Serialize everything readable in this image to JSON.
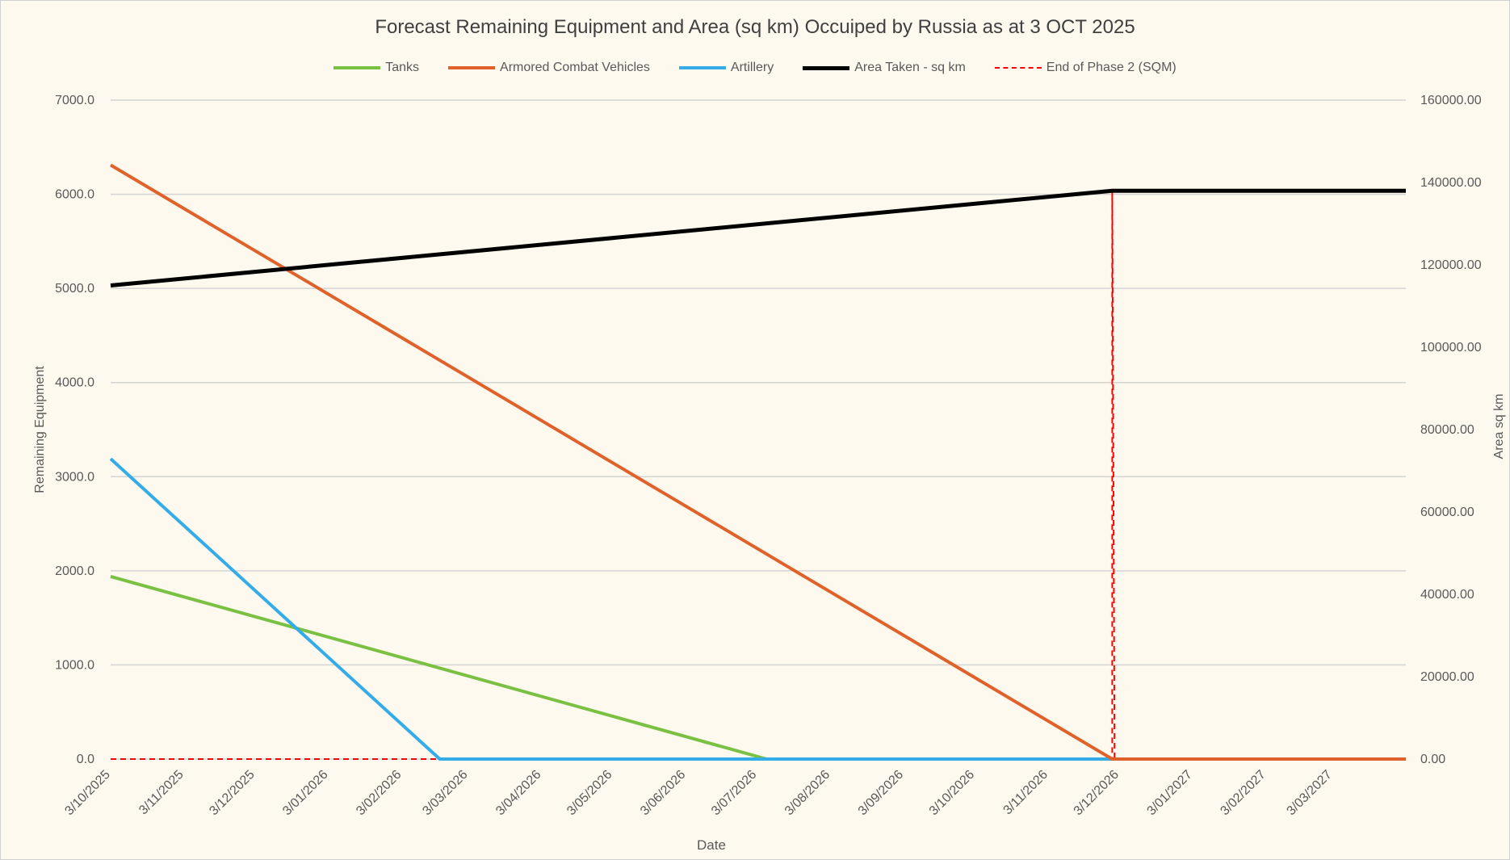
{
  "chart_data": {
    "type": "line",
    "title": "Forecast Remaining Equipment and Area (sq km) Occuiped by Russia as at 3 OCT 2025",
    "xlabel": "Date",
    "ylabel": "Remaining Equipment",
    "y2label": "Area sq km",
    "xlim": [
      "2025-10-03",
      "2027-04-03"
    ],
    "ylim": [
      0,
      7000
    ],
    "y2lim": [
      0,
      160000
    ],
    "yticks": [
      "0.0",
      "1000.0",
      "2000.0",
      "3000.0",
      "4000.0",
      "5000.0",
      "6000.0",
      "7000.0"
    ],
    "y2ticks": [
      "0.00",
      "20000.00",
      "40000.00",
      "60000.00",
      "80000.00",
      "100000.00",
      "120000.00",
      "140000.00",
      "160000.00"
    ],
    "xticks": [
      "3/10/2025",
      "3/11/2025",
      "3/12/2025",
      "3/01/2026",
      "3/02/2026",
      "3/03/2026",
      "3/04/2026",
      "3/05/2026",
      "3/06/2026",
      "3/07/2026",
      "3/08/2026",
      "3/09/2026",
      "3/10/2026",
      "3/11/2026",
      "3/12/2026",
      "3/01/2027",
      "3/02/2027",
      "3/03/2027"
    ],
    "grid": true,
    "legend_position": "top",
    "series": [
      {
        "name": "Tanks",
        "color": "#7ac143",
        "axis": "left",
        "dash": false,
        "points": [
          [
            "2025-10-03",
            1940
          ],
          [
            "2026-07-07",
            0
          ],
          [
            "2027-04-03",
            0
          ]
        ]
      },
      {
        "name": "Armored Combat Vehicles",
        "color": "#e0622b",
        "axis": "left",
        "dash": false,
        "points": [
          [
            "2025-10-03",
            6310
          ],
          [
            "2026-11-30",
            0
          ],
          [
            "2027-04-03",
            0
          ]
        ]
      },
      {
        "name": "Artillery",
        "color": "#33ace8",
        "axis": "left",
        "dash": false,
        "points": [
          [
            "2025-10-03",
            3190
          ],
          [
            "2026-02-19",
            0
          ],
          [
            "2027-04-03",
            0
          ]
        ]
      },
      {
        "name": "Area Taken - sq km",
        "color": "#000000",
        "axis": "right",
        "dash": false,
        "points": [
          [
            "2025-10-03",
            115000
          ],
          [
            "2026-11-30",
            138000
          ],
          [
            "2027-04-03",
            138000
          ]
        ]
      },
      {
        "name": "End of Phase 2 (SQM)",
        "color": "#ff0000",
        "axis": "right",
        "dash": true,
        "points": [
          [
            "2025-10-03",
            0
          ],
          [
            "2026-11-30",
            0
          ],
          [
            "2026-11-30",
            138000
          ],
          [
            "2026-12-01",
            0
          ],
          [
            "2027-04-03",
            0
          ]
        ]
      }
    ]
  }
}
